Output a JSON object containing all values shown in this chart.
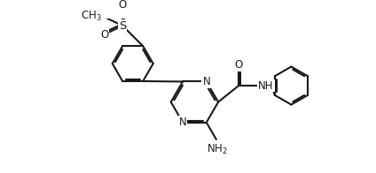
{
  "bg_color": "#ffffff",
  "line_color": "#1a1a1a",
  "line_width": 1.5,
  "font_size": 8.5,
  "figsize": [
    4.24,
    1.96
  ],
  "dpi": 100,
  "xlim": [
    0,
    10.0
  ],
  "ylim": [
    0,
    4.7
  ]
}
